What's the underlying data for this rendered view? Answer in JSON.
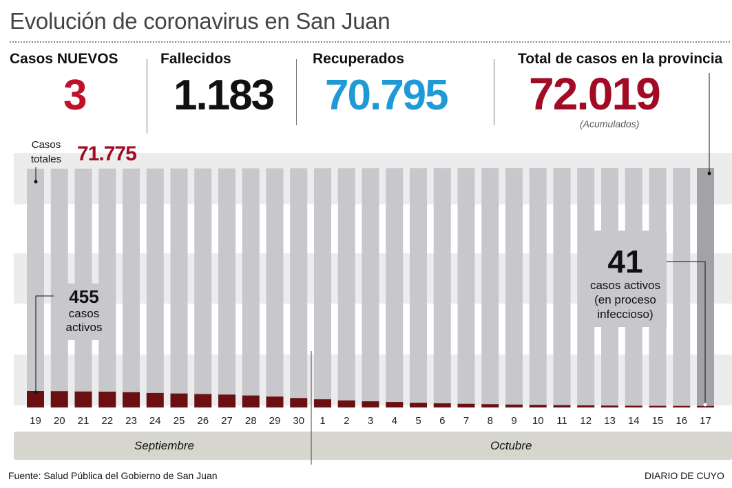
{
  "title": "Evolución de coronavirus en San Juan",
  "stats": {
    "nuevos": {
      "label": "Casos NUEVOS",
      "value": "3",
      "color": "#c0102a"
    },
    "fallecidos": {
      "label": "Fallecidos",
      "value": "1.183",
      "color": "#111111"
    },
    "recuperados": {
      "label": "Recuperados",
      "value": "70.795",
      "color": "#1f9ad6"
    },
    "total": {
      "label": "Total de casos en la provincia",
      "value": "72.019",
      "color": "#a10c24",
      "note": "(Acumulados)"
    }
  },
  "annotations": {
    "casos_totales_line1": "Casos",
    "casos_totales_line2": "totales",
    "casos_totales_value": "71.775",
    "start_active_value": "455",
    "start_active_line1": "casos",
    "start_active_line2": "activos",
    "end_active_value": "41",
    "end_active_line1": "casos activos",
    "end_active_line2": "(en proceso",
    "end_active_line3": "infeccioso)"
  },
  "months": {
    "sep": "Septiembre",
    "oct": "Octubre"
  },
  "footer": {
    "source": "Fuente: Salud Pública del Gobierno de San Juan",
    "brand": "DIARIO DE CUYO"
  },
  "colors": {
    "total_bar": "#c7c7cc",
    "total_bar_last": "#a3a3a7",
    "active_bar": "#6b0f12",
    "band": "#ececec"
  },
  "chart_data": {
    "type": "bar",
    "categories": [
      "19",
      "20",
      "21",
      "22",
      "23",
      "24",
      "25",
      "26",
      "27",
      "28",
      "29",
      "30",
      "1",
      "2",
      "3",
      "4",
      "5",
      "6",
      "7",
      "8",
      "9",
      "10",
      "11",
      "12",
      "13",
      "14",
      "15",
      "16",
      "17"
    ],
    "series": [
      {
        "name": "Casos totales",
        "values": [
          71775,
          71790,
          71805,
          71820,
          71835,
          71850,
          71865,
          71880,
          71895,
          71910,
          71925,
          71940,
          71950,
          71960,
          71965,
          71970,
          71975,
          71980,
          71985,
          71990,
          71995,
          72000,
          72003,
          72006,
          72009,
          72012,
          72014,
          72016,
          72019
        ]
      },
      {
        "name": "casos activos",
        "values": [
          455,
          450,
          440,
          435,
          420,
          400,
          385,
          370,
          355,
          330,
          300,
          260,
          225,
          195,
          170,
          150,
          130,
          115,
          100,
          90,
          80,
          72,
          65,
          58,
          52,
          48,
          45,
          43,
          41
        ]
      }
    ],
    "xlabel": "",
    "ylabel": ""
  }
}
